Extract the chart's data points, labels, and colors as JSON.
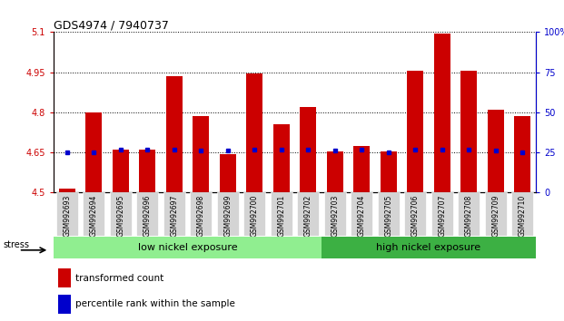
{
  "title": "GDS4974 / 7940737",
  "samples": [
    "GSM992693",
    "GSM992694",
    "GSM992695",
    "GSM992696",
    "GSM992697",
    "GSM992698",
    "GSM992699",
    "GSM992700",
    "GSM992701",
    "GSM992702",
    "GSM992703",
    "GSM992704",
    "GSM992705",
    "GSM992706",
    "GSM992707",
    "GSM992708",
    "GSM992709",
    "GSM992710"
  ],
  "red_values": [
    4.515,
    4.8,
    4.66,
    4.66,
    4.935,
    4.785,
    4.645,
    4.945,
    4.755,
    4.82,
    4.655,
    4.675,
    4.655,
    4.955,
    5.095,
    4.955,
    4.81,
    4.785
  ],
  "blue_values": [
    25,
    25,
    27,
    27,
    27,
    26,
    26,
    27,
    27,
    27,
    26,
    27,
    25,
    27,
    27,
    27,
    26,
    25
  ],
  "low_nickel_count": 10,
  "high_nickel_count": 8,
  "group_labels": [
    "low nickel exposure",
    "high nickel exposure"
  ],
  "stress_label": "stress",
  "legend1": "transformed count",
  "legend2": "percentile rank within the sample",
  "ylim": [
    4.5,
    5.1
  ],
  "y2lim": [
    0,
    100
  ],
  "yticks": [
    4.5,
    4.65,
    4.8,
    4.95,
    5.1
  ],
  "y2ticks": [
    0,
    25,
    50,
    75,
    100
  ],
  "bar_color": "#cc0000",
  "dot_color": "#0000cc",
  "grid_color": "#000000",
  "bg_chart": "#ffffff",
  "bg_xticklabels": "#d4d4d4",
  "bg_low": "#90ee90",
  "bg_high": "#3cb043",
  "title_color": "#000000",
  "yticklabel_color": "#cc0000",
  "y2ticklabel_color": "#0000cc"
}
